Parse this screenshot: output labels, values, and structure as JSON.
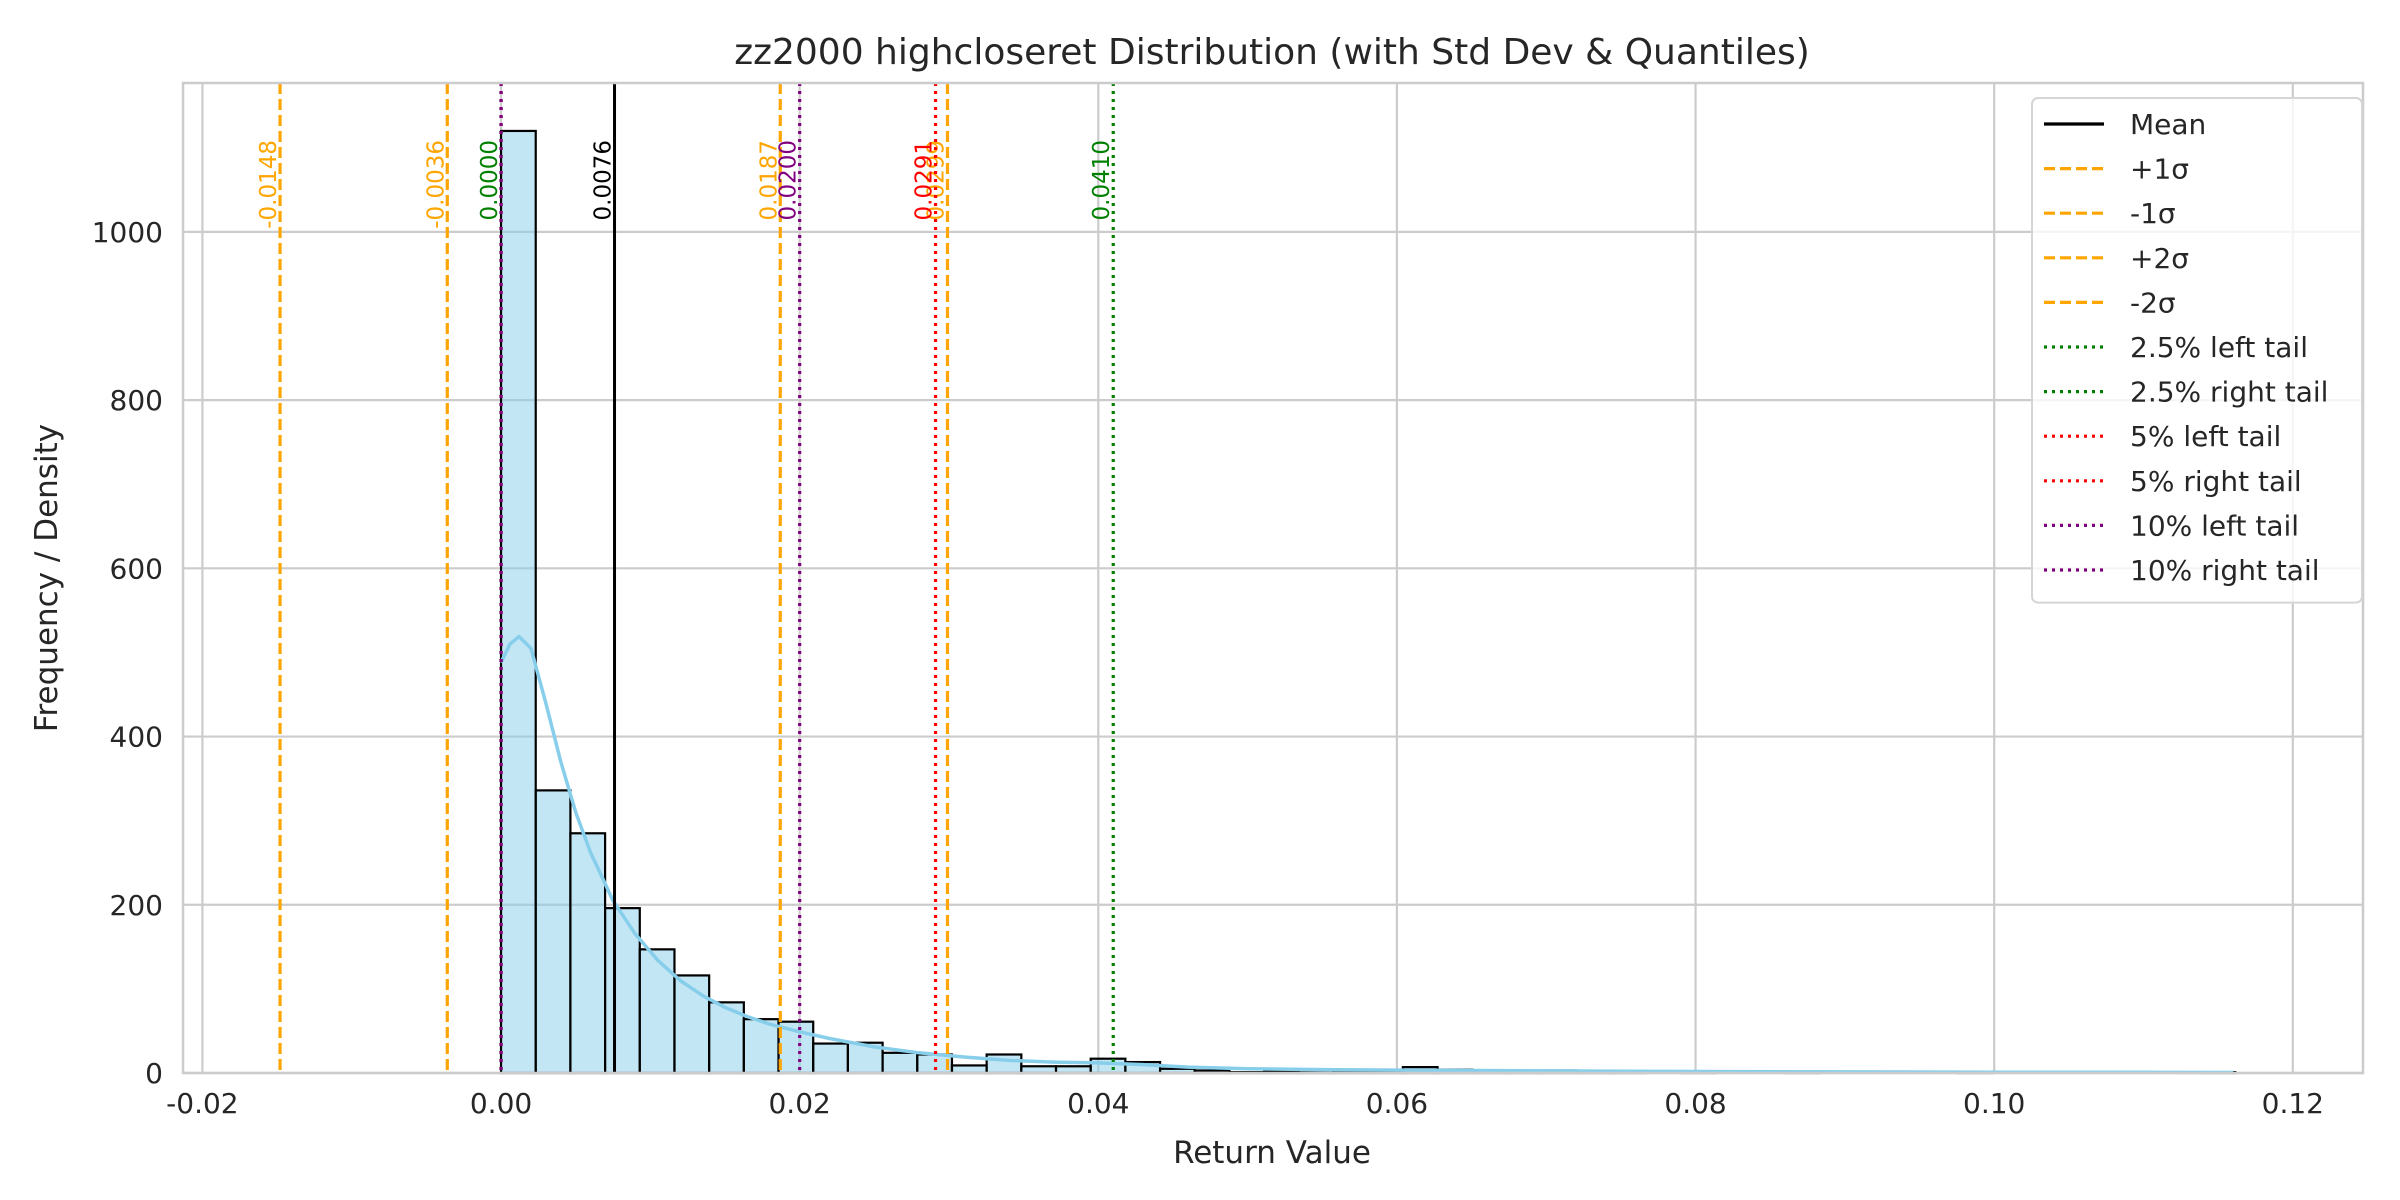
{
  "chart_data": {
    "type": "bar",
    "title": "zz2000 highcloseret Distribution (with Std Dev & Quantiles)",
    "xlabel": "Return Value",
    "ylabel": "Frequency / Density",
    "xlim": [
      -0.0213,
      0.1247
    ],
    "ylim": [
      0,
      1177
    ],
    "grid": true,
    "xticks": [
      -0.02,
      0.0,
      0.02,
      0.04,
      0.06,
      0.08,
      0.1,
      0.12
    ],
    "xtick_labels": [
      "-0.02",
      "0.00",
      "0.02",
      "0.04",
      "0.06",
      "0.08",
      "0.10",
      "0.12"
    ],
    "yticks": [
      0,
      200,
      400,
      600,
      800,
      1000
    ],
    "ytick_labels": [
      "0",
      "200",
      "400",
      "600",
      "800",
      "1000"
    ],
    "histogram": {
      "bin_start": 0.0,
      "bin_width": 0.002323,
      "counts": [
        1120,
        336,
        285,
        196,
        147,
        116,
        84,
        64,
        61,
        35,
        36,
        24,
        22,
        9,
        22,
        8,
        8,
        17,
        13,
        5,
        3,
        1,
        2,
        3,
        2,
        2,
        7,
        4,
        1,
        1,
        3,
        1,
        1,
        0,
        1,
        0,
        0,
        1,
        0,
        0,
        0,
        0,
        1,
        0,
        0,
        0,
        0,
        0,
        0,
        1
      ],
      "fill_color": "#87ceeb",
      "edge_color": "#000000"
    },
    "kde": {
      "color": "#87ceeb",
      "x": [
        0.0,
        0.0006,
        0.0012,
        0.002,
        0.003,
        0.004,
        0.005,
        0.006,
        0.0075,
        0.009,
        0.0105,
        0.012,
        0.0135,
        0.015,
        0.0165,
        0.018,
        0.02,
        0.022,
        0.025,
        0.028,
        0.031,
        0.034,
        0.037,
        0.04,
        0.043,
        0.046,
        0.05,
        0.055,
        0.06,
        0.065,
        0.07,
        0.08,
        0.09,
        0.1,
        0.11,
        0.116
      ],
      "y": [
        488,
        510,
        519,
        505,
        440,
        370,
        310,
        262,
        205,
        165,
        134,
        110,
        92,
        78,
        67,
        58,
        49,
        41,
        31,
        24,
        19,
        15,
        13,
        12,
        10,
        7,
        5,
        4,
        3.5,
        3,
        2.5,
        1.8,
        1.3,
        1,
        0.8,
        0.6
      ]
    },
    "vlines": [
      {
        "name": "Mean",
        "x": 0.0076,
        "label": "0.0076",
        "color": "#000000",
        "style": "solid"
      },
      {
        "name": "+1σ",
        "x": 0.0187,
        "label": "0.0187",
        "color": "#ffa500",
        "style": "dashed"
      },
      {
        "name": "-1σ",
        "x": -0.0036,
        "label": "-0.0036",
        "color": "#ffa500",
        "style": "dashed"
      },
      {
        "name": "+2σ",
        "x": 0.0299,
        "label": "0.0299",
        "color": "#ffa500",
        "style": "dashed"
      },
      {
        "name": "-2σ",
        "x": -0.0148,
        "label": "-0.0148",
        "color": "#ffa500",
        "style": "dashed"
      },
      {
        "name": "2.5% left tail",
        "x": 0.0,
        "label": "0.0000",
        "color": "#008000",
        "style": "dotted"
      },
      {
        "name": "2.5% right tail",
        "x": 0.041,
        "label": "0.0410",
        "color": "#008000",
        "style": "dotted"
      },
      {
        "name": "5% left tail",
        "x": 0.0,
        "label": "0.0000",
        "color": "#ff0000",
        "style": "dotted"
      },
      {
        "name": "5% right tail",
        "x": 0.0291,
        "label": "0.0291",
        "color": "#ff0000",
        "style": "dotted"
      },
      {
        "name": "10% left tail",
        "x": 0.0,
        "label": "0.0000",
        "color": "#800080",
        "style": "dotted"
      },
      {
        "name": "10% right tail",
        "x": 0.02,
        "label": "0.0200",
        "color": "#800080",
        "style": "dotted"
      }
    ],
    "legend": {
      "position": "top-right",
      "entries": [
        {
          "label": "Mean",
          "color": "#000000",
          "style": "solid"
        },
        {
          "label": "+1σ",
          "color": "#ffa500",
          "style": "dashed"
        },
        {
          "label": "-1σ",
          "color": "#ffa500",
          "style": "dashed"
        },
        {
          "label": "+2σ",
          "color": "#ffa500",
          "style": "dashed"
        },
        {
          "label": "-2σ",
          "color": "#ffa500",
          "style": "dashed"
        },
        {
          "label": "2.5% left tail",
          "color": "#008000",
          "style": "dotted"
        },
        {
          "label": "2.5% right tail",
          "color": "#008000",
          "style": "dotted"
        },
        {
          "label": "5% left tail",
          "color": "#ff0000",
          "style": "dotted"
        },
        {
          "label": "5% right tail",
          "color": "#ff0000",
          "style": "dotted"
        },
        {
          "label": "10% left tail",
          "color": "#800080",
          "style": "dotted"
        },
        {
          "label": "10% right tail",
          "color": "#800080",
          "style": "dotted"
        }
      ]
    }
  }
}
